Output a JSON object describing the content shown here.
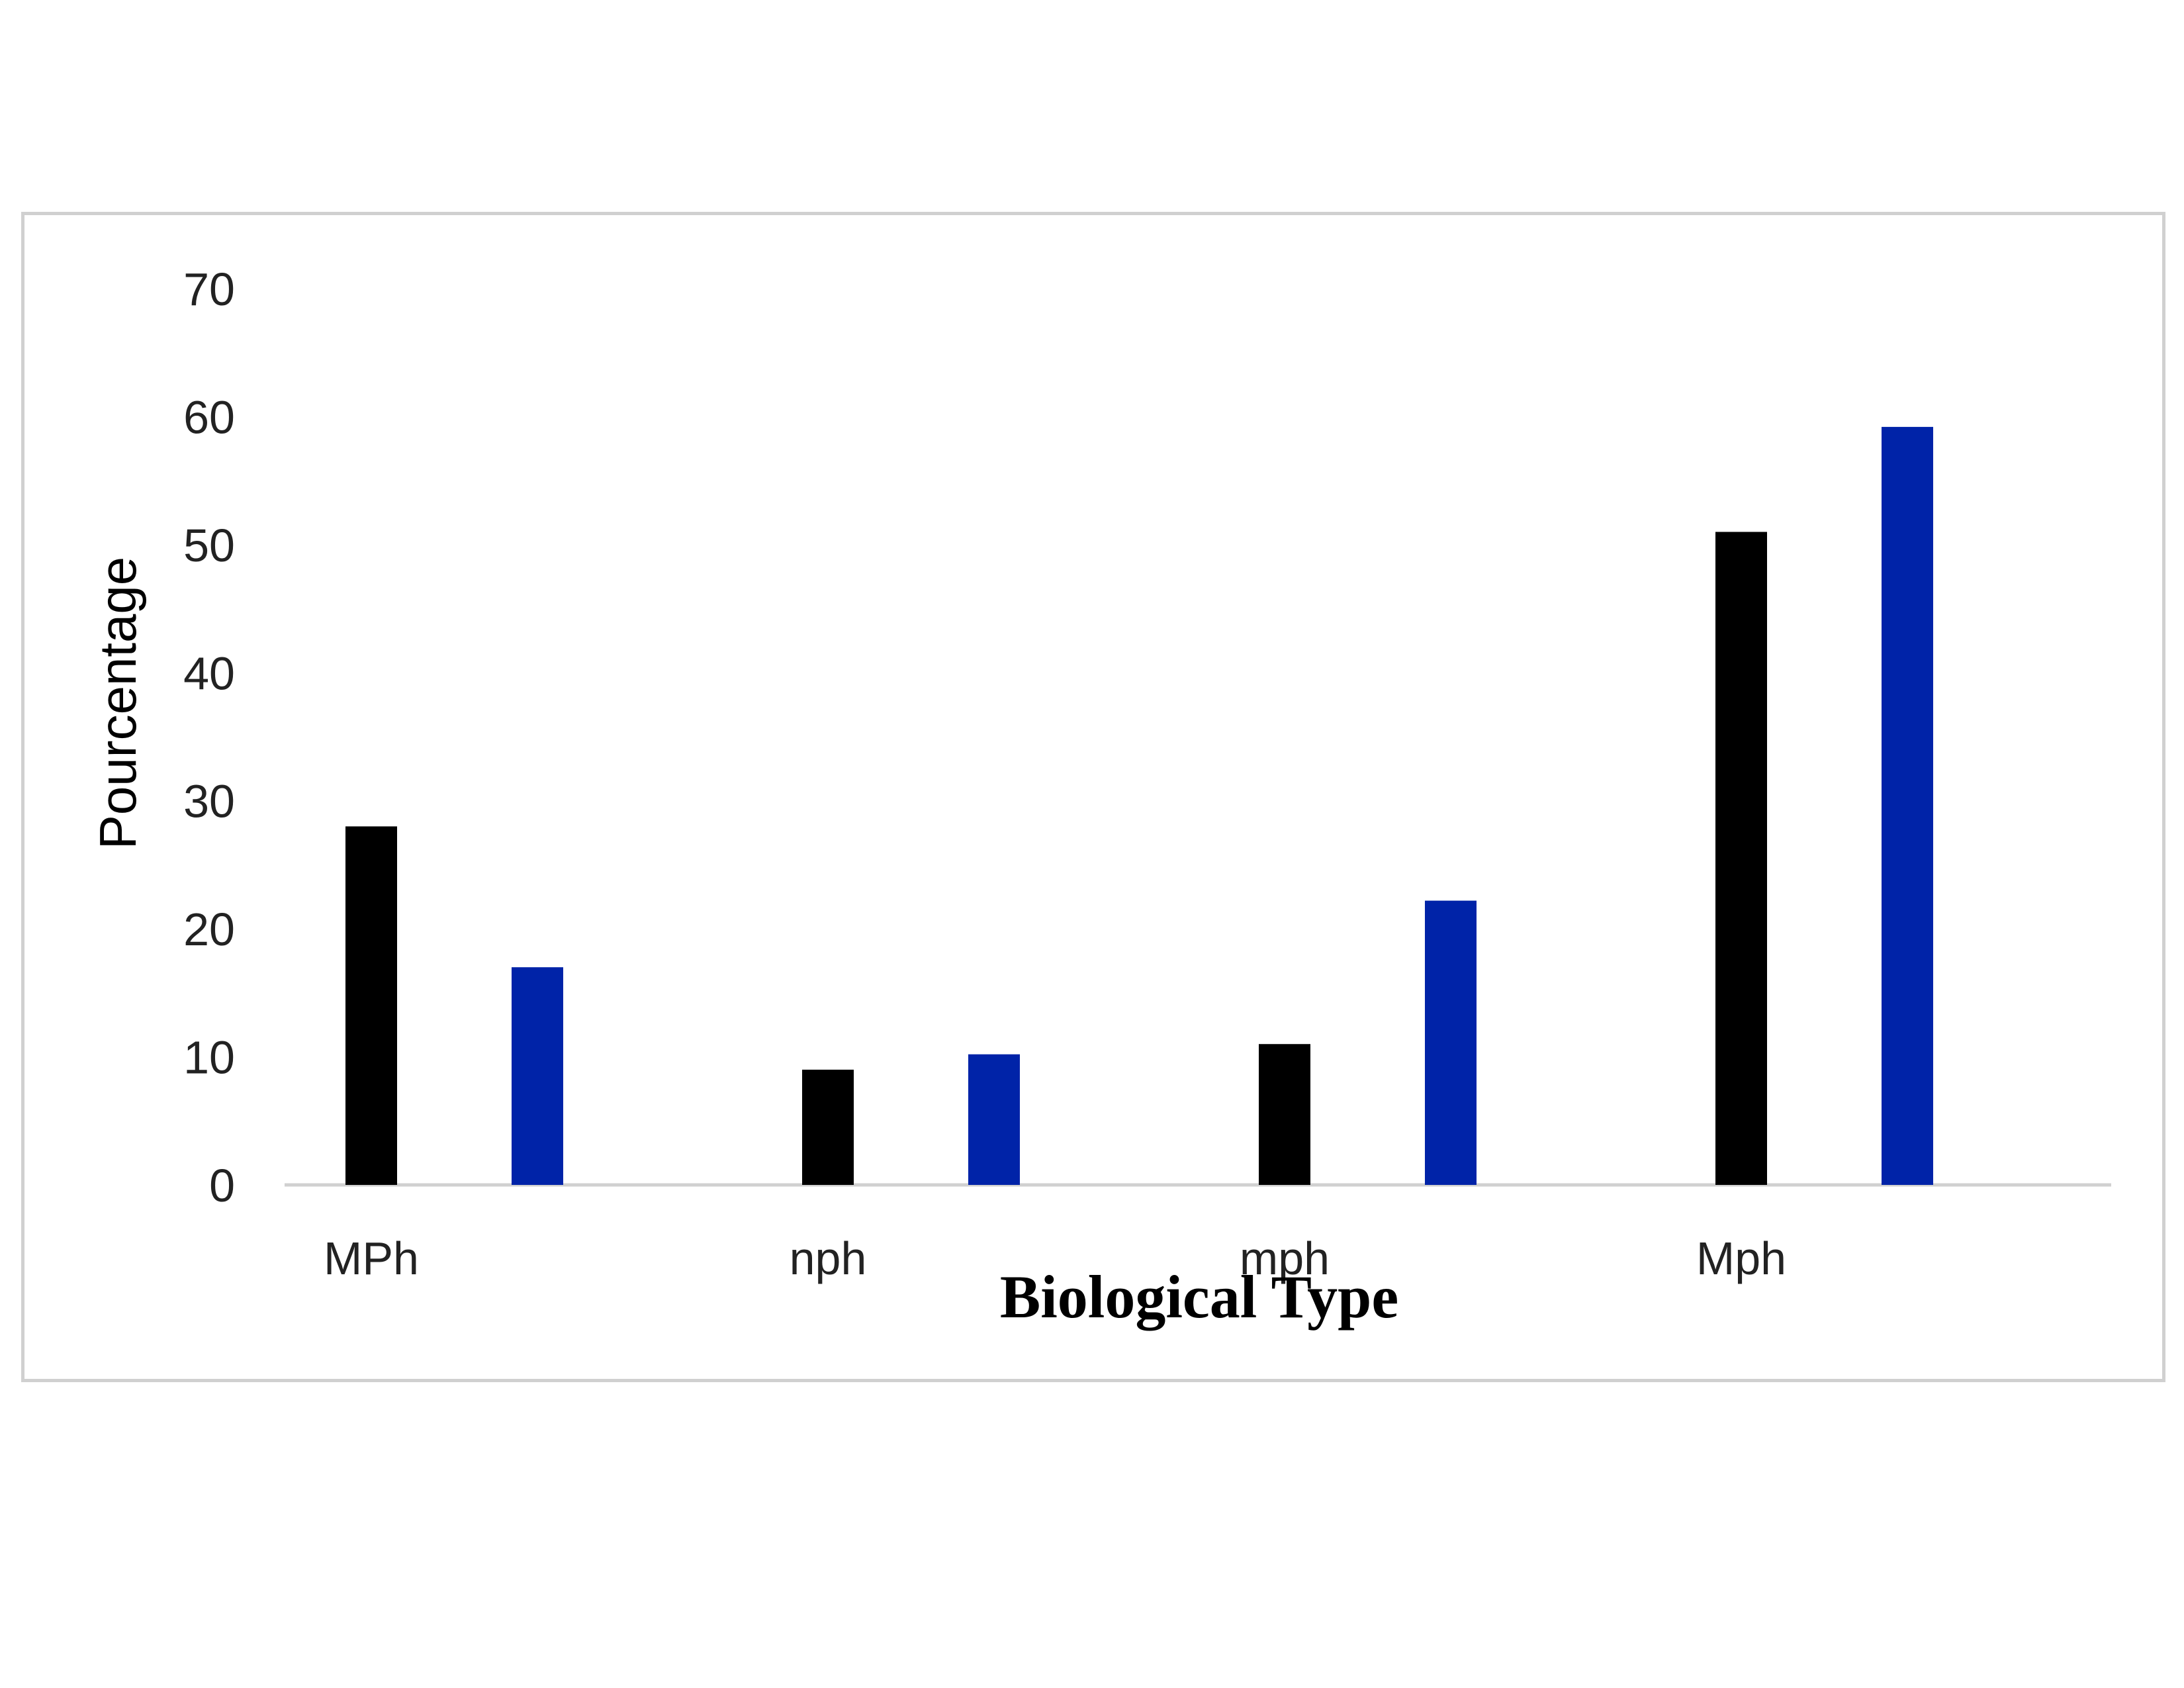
{
  "chart_data": {
    "type": "bar",
    "title": "",
    "xlabel": "Biological Type",
    "ylabel": "Pourcentage",
    "categories": [
      "MPh",
      "nph",
      "mph",
      "Mph"
    ],
    "series": [
      {
        "values": [
          28,
          9,
          11,
          51
        ],
        "color": "#000000"
      },
      {
        "values": [
          17,
          10.2,
          22.2,
          59.2
        ],
        "color": "#0023a8"
      }
    ],
    "ylim": [
      0,
      70
    ],
    "yticks": [
      0,
      10,
      20,
      30,
      40,
      50,
      60,
      70
    ],
    "grid": false,
    "legend": "none"
  }
}
